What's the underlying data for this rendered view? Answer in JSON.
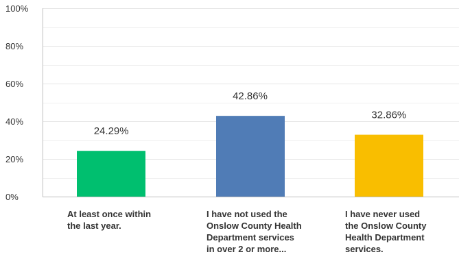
{
  "chart_data": {
    "type": "bar",
    "title": "",
    "xlabel": "",
    "ylabel": "",
    "ylim": [
      0,
      100
    ],
    "yticks": [
      0,
      20,
      40,
      60,
      80,
      100
    ],
    "ytick_labels": [
      "0%",
      "20%",
      "40%",
      "60%",
      "80%",
      "100%"
    ],
    "grid": true,
    "legend": "none",
    "categories": [
      "At least once within the last year.",
      "I have not used the Onslow County Health Department services in over 2 or more...",
      "I have never used the Onslow County Health Department services."
    ],
    "category_lines": [
      [
        "At least once within",
        "the last year."
      ],
      [
        "I have not used the",
        "Onslow County Health",
        "Department services",
        "in over 2 or more..."
      ],
      [
        "I have never used",
        "the Onslow County",
        "Health Department",
        "services."
      ]
    ],
    "values": [
      24.29,
      42.86,
      32.86
    ],
    "value_labels": [
      "24.29%",
      "42.86%",
      "32.86%"
    ],
    "colors": [
      "#00bf6f",
      "#507cb6",
      "#f9be00"
    ]
  }
}
